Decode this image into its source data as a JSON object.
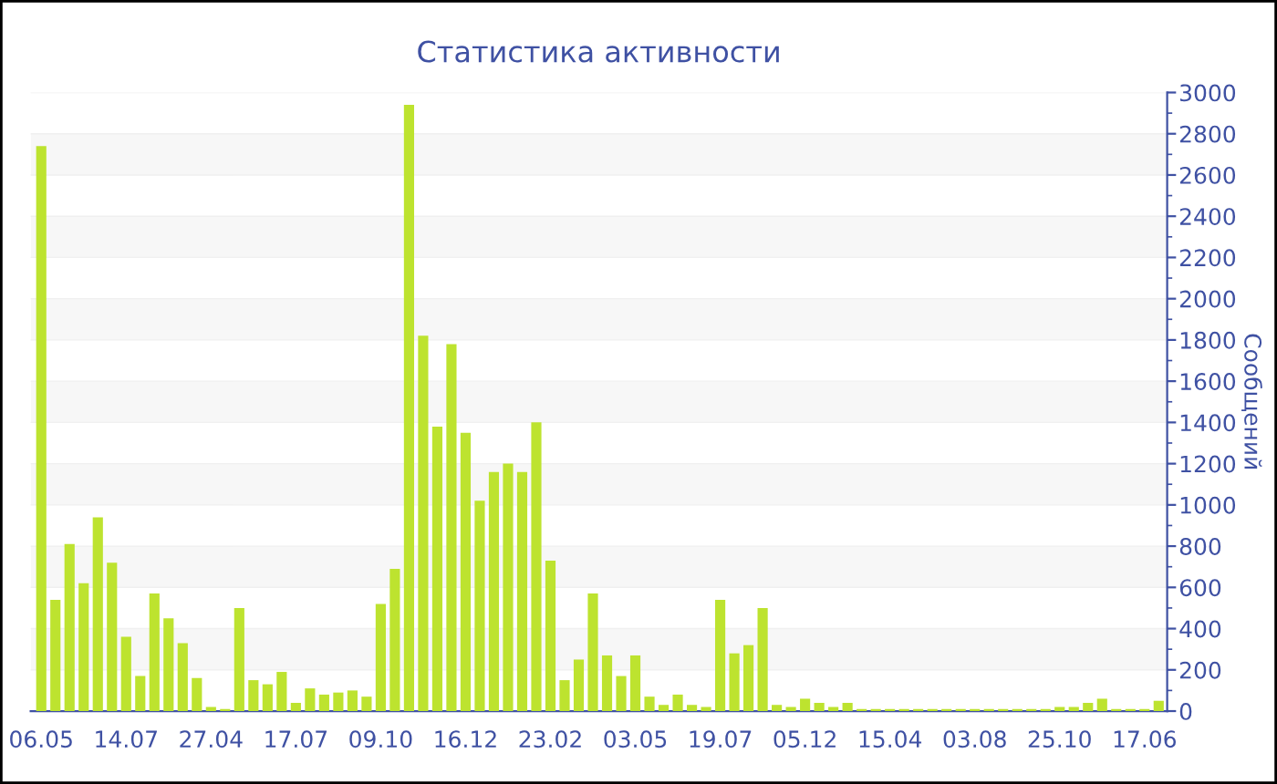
{
  "chart_data": {
    "type": "bar",
    "title": "Статистика активности",
    "y2label": "Сообщений",
    "categories": [
      "06.05",
      null,
      null,
      null,
      null,
      null,
      "14.07",
      null,
      null,
      null,
      null,
      null,
      "27.04",
      null,
      null,
      null,
      null,
      null,
      "17.07",
      null,
      null,
      null,
      null,
      null,
      "09.10",
      null,
      null,
      null,
      null,
      null,
      "16.12",
      null,
      null,
      null,
      null,
      null,
      "23.02",
      null,
      null,
      null,
      null,
      null,
      "03.05",
      null,
      null,
      null,
      null,
      null,
      "19.07",
      null,
      null,
      null,
      null,
      null,
      "05.12",
      null,
      null,
      null,
      null,
      null,
      "15.04",
      null,
      null,
      null,
      null,
      null,
      "03.08",
      null,
      null,
      null,
      null,
      null,
      "25.10",
      null,
      null,
      null,
      null,
      null,
      "17.06",
      null
    ],
    "series": [
      {
        "color": "#bde32f",
        "axis": "y2",
        "values": [
          2740,
          540,
          810,
          620,
          940,
          720,
          360,
          170,
          570,
          450,
          330,
          160,
          20,
          10,
          500,
          150,
          130,
          190,
          40,
          110,
          80,
          90,
          100,
          70,
          520,
          690,
          2940,
          1820,
          1380,
          1780,
          1350,
          1020,
          1160,
          1200,
          1160,
          1400,
          730,
          150,
          250,
          570,
          270,
          170,
          270,
          70,
          30,
          80,
          30,
          20,
          540,
          280,
          320,
          500,
          30,
          20,
          60,
          40,
          20,
          40,
          10,
          10,
          10,
          10,
          10,
          10,
          10,
          10,
          10,
          10,
          10,
          10,
          10,
          10,
          20,
          20,
          40,
          60,
          10,
          10,
          10,
          50
        ]
      }
    ],
    "y2lim": [
      0,
      3000
    ],
    "y2ticks": [
      0,
      200,
      400,
      600,
      800,
      1000,
      1200,
      1400,
      1600,
      1800,
      2000,
      2200,
      2400,
      2600,
      2800,
      3000
    ],
    "grid": "y",
    "legend": false
  }
}
